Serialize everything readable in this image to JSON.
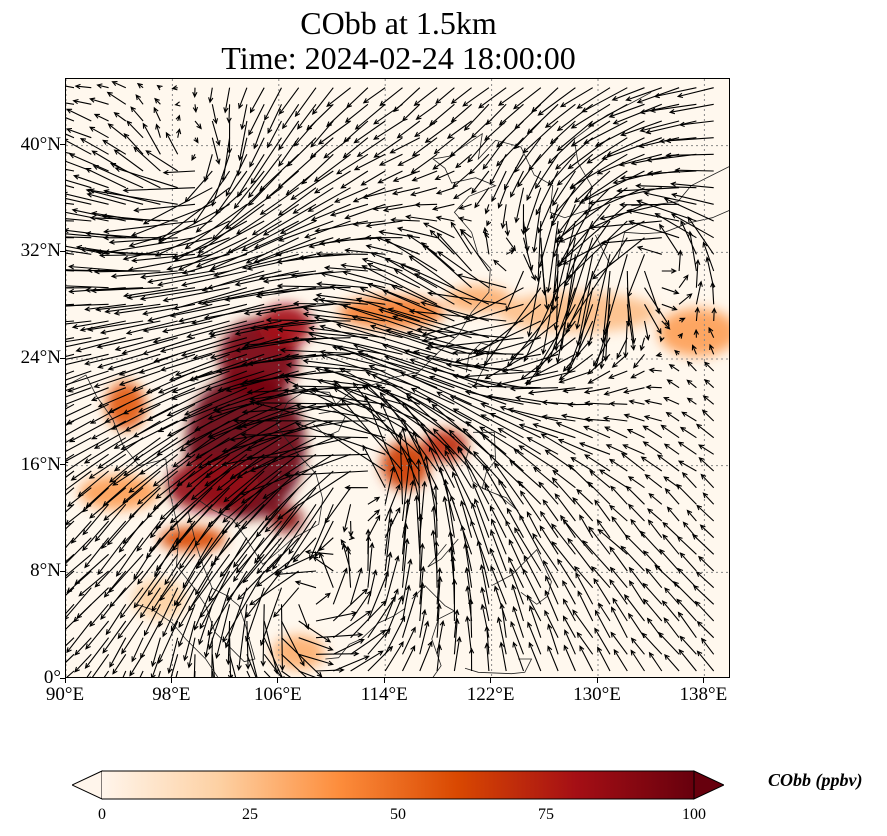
{
  "title": {
    "line1": "CObb at 1.5km",
    "line2": "Time: 2024-02-24 18:00:00"
  },
  "map": {
    "lon_range": [
      90,
      140
    ],
    "lat_range": [
      0,
      45
    ],
    "lon_ticks": [
      {
        "value": 90,
        "label": "90°E"
      },
      {
        "value": 98,
        "label": "98°E"
      },
      {
        "value": 106,
        "label": "106°E"
      },
      {
        "value": 114,
        "label": "114°E"
      },
      {
        "value": 122,
        "label": "122°E"
      },
      {
        "value": 130,
        "label": "130°E"
      },
      {
        "value": 138,
        "label": "138°E"
      }
    ],
    "lat_ticks": [
      {
        "value": 0,
        "label": "0°"
      },
      {
        "value": 8,
        "label": "8°N"
      },
      {
        "value": 16,
        "label": "16°N"
      },
      {
        "value": 24,
        "label": "24°N"
      },
      {
        "value": 32,
        "label": "32°N"
      },
      {
        "value": 40,
        "label": "40°N"
      }
    ],
    "gridlines": true,
    "field_name": "CObb",
    "field_units": "ppbv",
    "plumes": [
      {
        "lon": 103.5,
        "lat": 17.5,
        "value": 100,
        "rlon": 4.5,
        "rlat": 5.5
      },
      {
        "lon": 104.5,
        "lat": 24.0,
        "value": 95,
        "rlon": 3.0,
        "rlat": 3.0
      },
      {
        "lon": 106.5,
        "lat": 26.5,
        "value": 80,
        "rlon": 2.0,
        "rlat": 1.6
      },
      {
        "lon": 101.0,
        "lat": 14.5,
        "value": 85,
        "rlon": 3.5,
        "rlat": 2.0
      },
      {
        "lon": 106.5,
        "lat": 12.0,
        "value": 90,
        "rlon": 1.3,
        "rlat": 1.0
      },
      {
        "lon": 99.5,
        "lat": 10.5,
        "value": 60,
        "rlon": 2.5,
        "rlat": 0.9
      },
      {
        "lon": 94.5,
        "lat": 20.5,
        "value": 55,
        "rlon": 1.5,
        "rlat": 1.8
      },
      {
        "lon": 94.0,
        "lat": 14.0,
        "value": 35,
        "rlon": 3.0,
        "rlat": 1.3
      },
      {
        "lon": 115.5,
        "lat": 16.0,
        "value": 65,
        "rlon": 1.8,
        "rlat": 1.8
      },
      {
        "lon": 118.5,
        "lat": 17.5,
        "value": 70,
        "rlon": 1.7,
        "rlat": 1.2
      },
      {
        "lon": 114.5,
        "lat": 27.5,
        "value": 45,
        "rlon": 4.0,
        "rlat": 1.2
      },
      {
        "lon": 121.0,
        "lat": 28.5,
        "value": 30,
        "rlon": 2.5,
        "rlat": 1.0
      },
      {
        "lon": 128.5,
        "lat": 27.5,
        "value": 25,
        "rlon": 6.0,
        "rlat": 1.5
      },
      {
        "lon": 137.5,
        "lat": 26.0,
        "value": 35,
        "rlon": 3.0,
        "rlat": 1.8
      },
      {
        "lon": 107.5,
        "lat": 2.0,
        "value": 30,
        "rlon": 2.0,
        "rlat": 1.3
      },
      {
        "lon": 97.0,
        "lat": 6.0,
        "value": 20,
        "rlon": 2.0,
        "rlat": 1.5
      }
    ]
  },
  "colorbar": {
    "ticks": [
      {
        "value": 0,
        "label": "0"
      },
      {
        "value": 25,
        "label": "25"
      },
      {
        "value": 50,
        "label": "50"
      },
      {
        "value": 75,
        "label": "75"
      },
      {
        "value": 100,
        "label": "100"
      }
    ],
    "label": "CObb (ppbv)",
    "colors": [
      "#fff5eb",
      "#fdd0a2",
      "#fd8d3c",
      "#d94801",
      "#a50f15",
      "#67000d"
    ]
  }
}
